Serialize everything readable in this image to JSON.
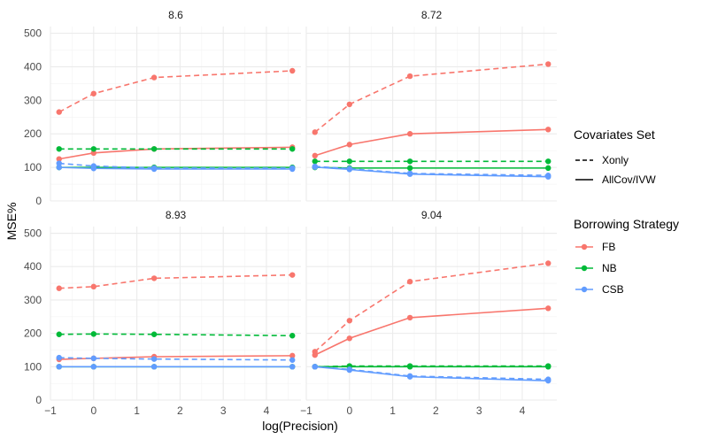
{
  "chart_data": {
    "type": "line",
    "xlabel": "log(Precision)",
    "ylabel": "MSE%",
    "xlim": [
      -1,
      4.8
    ],
    "ylim": [
      0,
      520
    ],
    "x_ticks": [
      -1,
      0,
      1,
      2,
      3,
      4
    ],
    "x_tick_labels": [
      "−1",
      "0",
      "1",
      "2",
      "3",
      "4"
    ],
    "y_ticks": [
      0,
      100,
      200,
      300,
      400,
      500
    ],
    "y_tick_labels": [
      "0",
      "100",
      "200",
      "300",
      "400",
      "500"
    ],
    "x": [
      -0.8,
      0,
      1.4,
      4.6
    ],
    "grid": true,
    "legend_position": "right",
    "colors": {
      "FB": "#F8766D",
      "NB": "#00BA38",
      "CSB": "#619CFF"
    },
    "linetypes": {
      "Xonly": "dashed",
      "AllCov/IVW": "solid"
    },
    "legends": [
      {
        "title": "Covariates Set",
        "entries": [
          {
            "label": "Xonly",
            "linetype": "dashed"
          },
          {
            "label": "AllCov/IVW",
            "linetype": "solid"
          }
        ]
      },
      {
        "title": "Borrowing Strategy",
        "entries": [
          {
            "label": "FB",
            "color": "#F8766D"
          },
          {
            "label": "NB",
            "color": "#00BA38"
          },
          {
            "label": "CSB",
            "color": "#619CFF"
          }
        ]
      }
    ],
    "facets": [
      {
        "label": "8.6",
        "series": [
          {
            "strategy": "FB",
            "covariates": "Xonly",
            "values": [
              265,
              320,
              368,
              388
            ]
          },
          {
            "strategy": "FB",
            "covariates": "AllCov/IVW",
            "values": [
              125,
              143,
              155,
              160
            ]
          },
          {
            "strategy": "NB",
            "covariates": "Xonly",
            "values": [
              155,
              155,
              155,
              155
            ]
          },
          {
            "strategy": "NB",
            "covariates": "AllCov/IVW",
            "values": [
              100,
              100,
              100,
              100
            ]
          },
          {
            "strategy": "CSB",
            "covariates": "Xonly",
            "values": [
              112,
              104,
              98,
              98
            ]
          },
          {
            "strategy": "CSB",
            "covariates": "AllCov/IVW",
            "values": [
              100,
              97,
              95,
              95
            ]
          }
        ]
      },
      {
        "label": "8.72",
        "series": [
          {
            "strategy": "FB",
            "covariates": "Xonly",
            "values": [
              205,
              288,
              372,
              408
            ]
          },
          {
            "strategy": "FB",
            "covariates": "AllCov/IVW",
            "values": [
              135,
              168,
              200,
              213
            ]
          },
          {
            "strategy": "NB",
            "covariates": "Xonly",
            "values": [
              118,
              118,
              118,
              118
            ]
          },
          {
            "strategy": "NB",
            "covariates": "AllCov/IVW",
            "values": [
              100,
              98,
              98,
              98
            ]
          },
          {
            "strategy": "CSB",
            "covariates": "Xonly",
            "values": [
              103,
              96,
              82,
              76
            ]
          },
          {
            "strategy": "CSB",
            "covariates": "AllCov/IVW",
            "values": [
              101,
              94,
              80,
              72
            ]
          }
        ]
      },
      {
        "label": "8.93",
        "series": [
          {
            "strategy": "FB",
            "covariates": "Xonly",
            "values": [
              335,
              340,
              365,
              375
            ]
          },
          {
            "strategy": "FB",
            "covariates": "AllCov/IVW",
            "values": [
              122,
              125,
              130,
              133
            ]
          },
          {
            "strategy": "NB",
            "covariates": "Xonly",
            "values": [
              197,
              198,
              197,
              193
            ]
          },
          {
            "strategy": "NB",
            "covariates": "AllCov/IVW",
            "values": [
              100,
              100,
              100,
              100
            ]
          },
          {
            "strategy": "CSB",
            "covariates": "Xonly",
            "values": [
              127,
              125,
              123,
              120
            ]
          },
          {
            "strategy": "CSB",
            "covariates": "AllCov/IVW",
            "values": [
              100,
              100,
              100,
              100
            ]
          }
        ]
      },
      {
        "label": "9.04",
        "series": [
          {
            "strategy": "FB",
            "covariates": "Xonly",
            "values": [
              145,
              238,
              355,
              410
            ]
          },
          {
            "strategy": "FB",
            "covariates": "AllCov/IVW",
            "values": [
              135,
              185,
              247,
              275
            ]
          },
          {
            "strategy": "NB",
            "covariates": "Xonly",
            "values": [
              100,
              102,
              102,
              102
            ]
          },
          {
            "strategy": "NB",
            "covariates": "AllCov/IVW",
            "values": [
              100,
              100,
              100,
              100
            ]
          },
          {
            "strategy": "CSB",
            "covariates": "Xonly",
            "values": [
              100,
              92,
              72,
              62
            ]
          },
          {
            "strategy": "CSB",
            "covariates": "AllCov/IVW",
            "values": [
              100,
              90,
              70,
              58
            ]
          }
        ]
      }
    ]
  }
}
